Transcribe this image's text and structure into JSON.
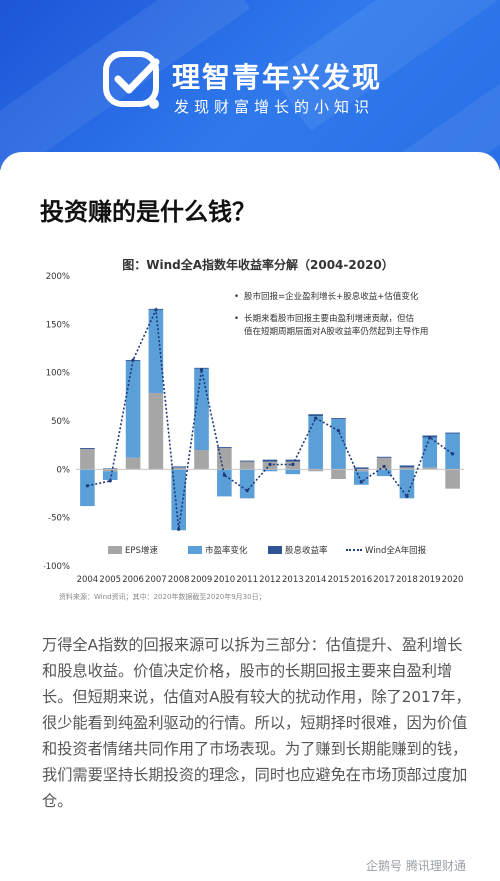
{
  "header": {
    "brand_title": "理智青年兴发现",
    "brand_subtitle": "发现财富增长的小知识"
  },
  "article": {
    "headline": "投资赚的是什么钱？",
    "paragraph": "万得全A指数的回报来源可以拆为三部分：估值提升、盈利增长和股息收益。价值决定价格，股市的长期回报主要来自盈利增长。但短期来说，估值对A股有较大的扰动作用，除了2017年，很少能看到纯盈利驱动的行情。所以，短期择时很难，因为价值和投资者情绪共同作用了市场表现。为了赚到长期能赚到的钱，我们需要坚持长期投资的理念，同时也应避免在市场顶部过度加仓。"
  },
  "watermark": "企鹅号 腾讯理财通",
  "chart_data": {
    "type": "bar",
    "title": "图：Wind全A指数年收益率分解（2004-2020）",
    "notes": [
      "股市回报=企业盈利增长+股息收益+估值变化",
      "长期来看股市回报主要由盈利增速贡献，但估",
      "值在短期周期层面对A股收益率仍然起到主导作用"
    ],
    "categories": [
      "2004",
      "2005",
      "2006",
      "2007",
      "2008",
      "2009",
      "2010",
      "2011",
      "2012",
      "2013",
      "2014",
      "2015",
      "2016",
      "2017",
      "2018",
      "2019",
      "2020"
    ],
    "series": [
      {
        "name": "EPS增速",
        "color": "#a6a6a6",
        "values": [
          21,
          -2,
          12,
          79,
          2,
          20,
          22,
          8,
          8,
          8,
          -2,
          -10,
          -2,
          12,
          2,
          2,
          -20
        ]
      },
      {
        "name": "市盈率变化",
        "color": "#5a9fd8",
        "values": [
          -38,
          -9,
          100,
          86,
          -63,
          84,
          -28,
          -30,
          -2,
          -5,
          55,
          52,
          -14,
          -7,
          -30,
          31,
          37
        ]
      },
      {
        "name": "股息收益率",
        "color": "#2f5597",
        "values": [
          1,
          1,
          1,
          1,
          1,
          1,
          1,
          1,
          2,
          2,
          2,
          1,
          2,
          1,
          2,
          2,
          1
        ]
      }
    ],
    "line_series": {
      "name": "Wind全A年回报",
      "color": "#1f3a78",
      "values": [
        -17,
        -12,
        113,
        165,
        -62,
        103,
        -6,
        -22,
        5,
        5,
        53,
        40,
        -13,
        3,
        -28,
        33,
        16
      ]
    },
    "ylim": [
      -100,
      200
    ],
    "yticks": [
      "-100%",
      "-50%",
      "0%",
      "50%",
      "100%",
      "150%",
      "200%"
    ],
    "source": "资料来源：Wind资讯；其中：2020年数据截至2020年9月30日；"
  }
}
